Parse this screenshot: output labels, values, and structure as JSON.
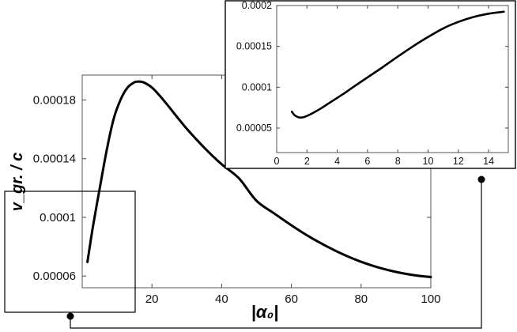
{
  "chart_data": [
    {
      "id": "main",
      "type": "line",
      "xlabel": "|α₀|",
      "ylabel": "v_gr. / c",
      "xlim": [
        0,
        100
      ],
      "ylim": [
        5.2e-05,
        0.000197
      ],
      "xticks": [
        20,
        40,
        60,
        80,
        100
      ],
      "yticks": [
        6e-05,
        0.0001,
        0.00014,
        0.00018
      ],
      "xtick_labels": [
        "20",
        "40",
        "60",
        "80",
        "100"
      ],
      "ytick_labels": [
        "0.00006",
        "0.0001",
        "0.00014",
        "0.00018"
      ],
      "grid": false,
      "series": [
        {
          "x": [
            1.5,
            3,
            5,
            7,
            9,
            11,
            13,
            15,
            16,
            17,
            18,
            20,
            22,
            25,
            30,
            35,
            40,
            45,
            50,
            55,
            60,
            65,
            70,
            75,
            80,
            85,
            90,
            95,
            100
          ],
          "y": [
            6.95e-05,
            9.26e-05,
            0.0001194,
            0.0001455,
            0.000167,
            0.0001802,
            0.0001885,
            0.0001921,
            0.0001926,
            0.0001924,
            0.0001916,
            0.0001885,
            0.0001836,
            0.000175,
            0.0001604,
            0.0001475,
            0.0001362,
            0.0001265,
            0.0001113,
            0.0001028,
            9.46e-05,
            8.7e-05,
            8.04e-05,
            7.46e-05,
            6.97e-05,
            6.58e-05,
            6.28e-05,
            6.06e-05,
            5.92e-05
          ]
        }
      ]
    },
    {
      "id": "inset",
      "type": "line",
      "xlim": [
        0,
        15.3
      ],
      "ylim": [
        2e-05,
        0.0002
      ],
      "xticks": [
        0,
        2,
        4,
        6,
        8,
        10,
        12,
        14
      ],
      "yticks": [
        5e-05,
        0.0001,
        0.00015,
        0.0002
      ],
      "xtick_labels": [
        "0",
        "2",
        "4",
        "6",
        "8",
        "10",
        "12",
        "14"
      ],
      "ytick_labels": [
        "0.00005",
        "0.0001",
        "0.00015",
        "0.0002"
      ],
      "grid": false,
      "series": [
        {
          "x": [
            1.0,
            1.2,
            1.5,
            1.8,
            2.2,
            2.6,
            3.0,
            3.5,
            4.0,
            4.5,
            5.0,
            6.0,
            7.0,
            8.0,
            9.0,
            10.0,
            11.0,
            12.0,
            13.0,
            14.0,
            15.0
          ],
          "y": [
            7e-05,
            6.55e-05,
            6.3e-05,
            6.35e-05,
            6.65e-05,
            7.05e-05,
            7.5e-05,
            8.1e-05,
            8.7e-05,
            9.3e-05,
            9.95e-05,
            0.000112,
            0.0001245,
            0.0001375,
            0.00015,
            0.0001615,
            0.000172,
            0.00018,
            0.000186,
            0.00019,
            0.0001925
          ]
        }
      ]
    }
  ]
}
